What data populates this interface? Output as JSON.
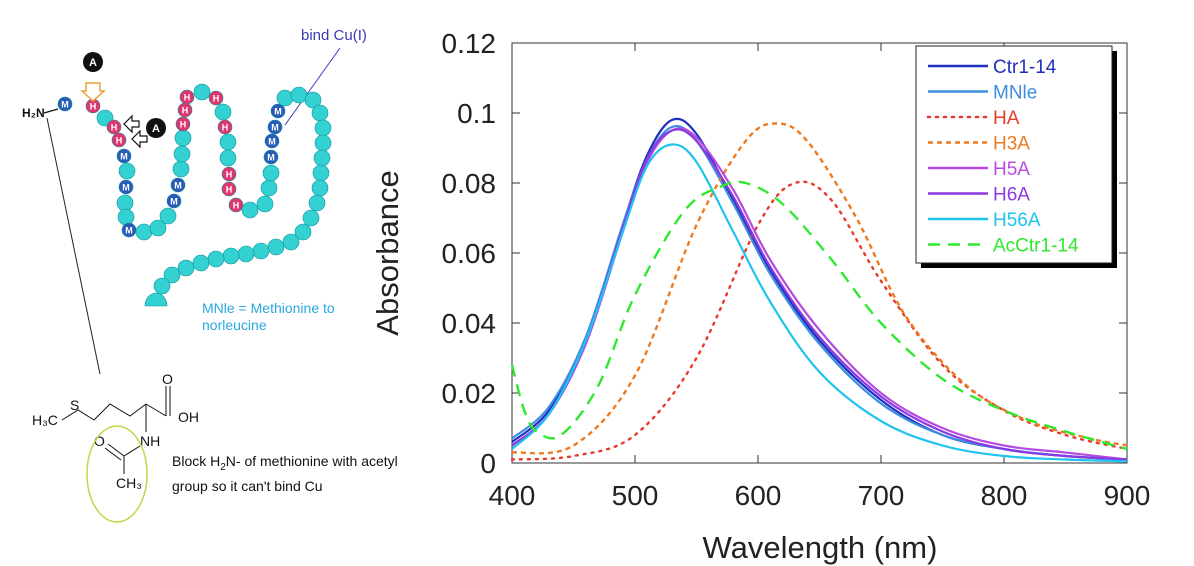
{
  "diagram": {
    "n_terminus": "H₂N",
    "bind_note": "bind Cu(I)",
    "mnle_note": "MNle = Methionine to norleucine",
    "block_note_parts": [
      "Block H",
      "2",
      "N- of methionine with acetyl group so it can't bind Cu"
    ],
    "marker_a": "A",
    "chem_labels": {
      "s": "S",
      "h3c": "H₃C",
      "o_top": "O",
      "oh": "OH",
      "nh": "NH",
      "o_left": "O",
      "ch3": "CH₃"
    },
    "residue_letters": {
      "M": "M",
      "H": "H"
    },
    "colors": {
      "bead": "#33d1d1",
      "met": "#2a5bb8",
      "his": "#e0356e",
      "arrow": "#e8a13a",
      "ellipse": "#c8d34a"
    }
  },
  "chart_data": {
    "type": "line",
    "xlabel": "Wavelength (nm)",
    "ylabel": "Absorbance",
    "xlim": [
      400,
      900
    ],
    "ylim": [
      0,
      0.12
    ],
    "xticks": [
      "400",
      "500",
      "600",
      "700",
      "800",
      "900"
    ],
    "yticks": [
      "0",
      "0.02",
      "0.04",
      "0.06",
      "0.08",
      "0.1",
      "0.12"
    ],
    "legend_position": "top-right",
    "series": [
      {
        "name": "Ctr1-14",
        "color": "#1f2fbf",
        "dash": "solid",
        "points": [
          [
            400,
            0.006
          ],
          [
            430,
            0.015
          ],
          [
            460,
            0.035
          ],
          [
            490,
            0.068
          ],
          [
            510,
            0.088
          ],
          [
            530,
            0.098
          ],
          [
            550,
            0.094
          ],
          [
            580,
            0.075
          ],
          [
            610,
            0.055
          ],
          [
            650,
            0.035
          ],
          [
            700,
            0.018
          ],
          [
            750,
            0.008
          ],
          [
            800,
            0.004
          ],
          [
            850,
            0.002
          ],
          [
            900,
            0.001
          ]
        ]
      },
      {
        "name": "MNle",
        "color": "#3c8de0",
        "dash": "solid",
        "points": [
          [
            400,
            0.007
          ],
          [
            430,
            0.016
          ],
          [
            460,
            0.036
          ],
          [
            490,
            0.068
          ],
          [
            510,
            0.087
          ],
          [
            530,
            0.096
          ],
          [
            550,
            0.092
          ],
          [
            580,
            0.074
          ],
          [
            610,
            0.054
          ],
          [
            650,
            0.034
          ],
          [
            700,
            0.017
          ],
          [
            750,
            0.008
          ],
          [
            800,
            0.004
          ],
          [
            850,
            0.002
          ],
          [
            900,
            0.001
          ]
        ]
      },
      {
        "name": "HA",
        "color": "#e83a2a",
        "dash": "dotted",
        "points": [
          [
            400,
            0.001
          ],
          [
            450,
            0.002
          ],
          [
            500,
            0.008
          ],
          [
            550,
            0.03
          ],
          [
            600,
            0.068
          ],
          [
            630,
            0.08
          ],
          [
            660,
            0.075
          ],
          [
            700,
            0.052
          ],
          [
            750,
            0.028
          ],
          [
            800,
            0.015
          ],
          [
            850,
            0.008
          ],
          [
            900,
            0.004
          ]
        ]
      },
      {
        "name": "H3A",
        "color": "#ee7a20",
        "dash": "short",
        "points": [
          [
            400,
            0.003
          ],
          [
            450,
            0.005
          ],
          [
            500,
            0.025
          ],
          [
            550,
            0.068
          ],
          [
            590,
            0.092
          ],
          [
            615,
            0.097
          ],
          [
            640,
            0.092
          ],
          [
            680,
            0.07
          ],
          [
            720,
            0.042
          ],
          [
            770,
            0.022
          ],
          [
            820,
            0.012
          ],
          [
            870,
            0.007
          ],
          [
            900,
            0.005
          ]
        ]
      },
      {
        "name": "H5A",
        "color": "#b44ce0",
        "dash": "solid",
        "points": [
          [
            400,
            0.005
          ],
          [
            430,
            0.014
          ],
          [
            460,
            0.034
          ],
          [
            490,
            0.066
          ],
          [
            510,
            0.086
          ],
          [
            530,
            0.095
          ],
          [
            550,
            0.093
          ],
          [
            580,
            0.078
          ],
          [
            610,
            0.058
          ],
          [
            650,
            0.038
          ],
          [
            700,
            0.02
          ],
          [
            750,
            0.01
          ],
          [
            800,
            0.005
          ],
          [
            850,
            0.003
          ],
          [
            900,
            0.001
          ]
        ]
      },
      {
        "name": "H6A",
        "color": "#8a3ae0",
        "dash": "solid",
        "points": [
          [
            400,
            0.005
          ],
          [
            430,
            0.014
          ],
          [
            460,
            0.035
          ],
          [
            490,
            0.067
          ],
          [
            510,
            0.087
          ],
          [
            530,
            0.095
          ],
          [
            550,
            0.092
          ],
          [
            580,
            0.076
          ],
          [
            610,
            0.056
          ],
          [
            650,
            0.036
          ],
          [
            700,
            0.019
          ],
          [
            750,
            0.009
          ],
          [
            800,
            0.004
          ],
          [
            850,
            0.002
          ],
          [
            900,
            0.001
          ]
        ]
      },
      {
        "name": "H56A",
        "color": "#1ec3ee",
        "dash": "solid",
        "points": [
          [
            400,
            0.004
          ],
          [
            430,
            0.014
          ],
          [
            460,
            0.035
          ],
          [
            490,
            0.066
          ],
          [
            510,
            0.085
          ],
          [
            530,
            0.091
          ],
          [
            550,
            0.086
          ],
          [
            580,
            0.066
          ],
          [
            610,
            0.046
          ],
          [
            650,
            0.026
          ],
          [
            700,
            0.012
          ],
          [
            750,
            0.005
          ],
          [
            800,
            0.002
          ],
          [
            850,
            0.001
          ],
          [
            900,
            0.0005
          ]
        ]
      },
      {
        "name": "AcCtr1-14",
        "color": "#2fe82f",
        "dash": "long",
        "points": [
          [
            400,
            0.028
          ],
          [
            410,
            0.015
          ],
          [
            420,
            0.009
          ],
          [
            440,
            0.008
          ],
          [
            470,
            0.022
          ],
          [
            500,
            0.048
          ],
          [
            540,
            0.072
          ],
          [
            570,
            0.079
          ],
          [
            590,
            0.08
          ],
          [
            620,
            0.074
          ],
          [
            660,
            0.058
          ],
          [
            700,
            0.04
          ],
          [
            750,
            0.024
          ],
          [
            800,
            0.015
          ],
          [
            850,
            0.009
          ],
          [
            900,
            0.004
          ]
        ]
      }
    ]
  }
}
